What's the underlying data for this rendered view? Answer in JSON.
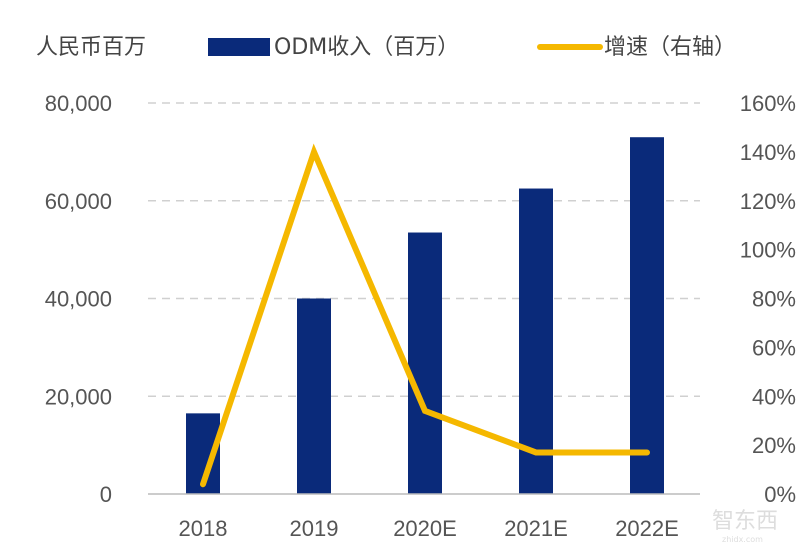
{
  "chart_data": {
    "type": "bar+line",
    "unit_label": "人民币百万",
    "categories": [
      "2018",
      "2019",
      "2020E",
      "2021E",
      "2022E"
    ],
    "series": [
      {
        "name": "ODM收入（百万）",
        "type": "bar",
        "axis": "left",
        "color": "#0a2a7a",
        "values": [
          16500,
          40000,
          53500,
          62500,
          73000
        ]
      },
      {
        "name": "增速（右轴）",
        "type": "line",
        "axis": "right",
        "color": "#f5b800",
        "values": [
          4,
          140,
          34,
          17,
          17
        ]
      }
    ],
    "left_axis": {
      "ylim": [
        0,
        80000
      ],
      "ticks": [
        "0",
        "20,000",
        "40,000",
        "60,000",
        "80,000"
      ]
    },
    "right_axis": {
      "ylim": [
        0,
        160
      ],
      "ticks": [
        "0%",
        "20%",
        "40%",
        "60%",
        "80%",
        "100%",
        "120%",
        "140%",
        "160%"
      ]
    },
    "grid": "horizontal dashed",
    "legend_position": "top"
  },
  "watermark": {
    "text": "智东西",
    "sub": "zhidx.com"
  }
}
